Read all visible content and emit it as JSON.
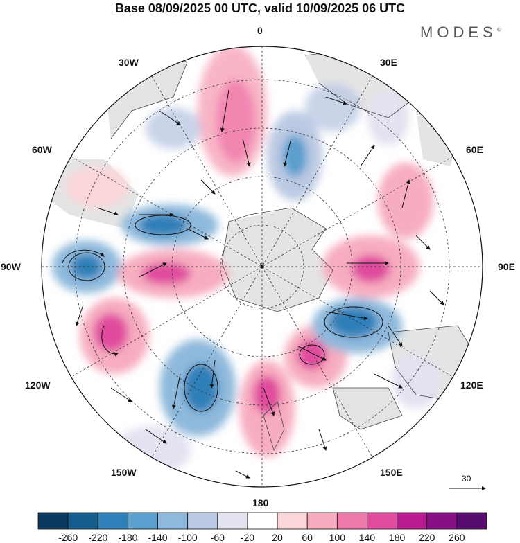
{
  "title": "Base 08/09/2025 00 UTC, valid 10/09/2025 06 UTC",
  "brand": "MODES",
  "brand_mark": "©",
  "longitude_labels": {
    "top": "0",
    "e30": "30E",
    "e60": "60E",
    "e90": "90E",
    "e120": "120E",
    "e150": "150E",
    "bottom": "180",
    "w150": "150W",
    "w120": "120W",
    "w90": "90W",
    "w60": "60W",
    "w30": "30W"
  },
  "reference_vector": "30",
  "colorbar": {
    "labels": [
      "-260",
      "-220",
      "-180",
      "-140",
      "-100",
      "-60",
      "-20",
      "20",
      "60",
      "100",
      "140",
      "180",
      "220",
      "260"
    ],
    "colors": [
      "#0b3a5e",
      "#135c8c",
      "#2f7fb8",
      "#5a9fcd",
      "#8fb9dc",
      "#bcc9e3",
      "#e3e2f0",
      "#ffffff",
      "#fbd6d8",
      "#f7adc0",
      "#ef7bab",
      "#e04c9e",
      "#b81b8f",
      "#871086",
      "#570c6f"
    ]
  },
  "colors": {
    "land": "#e4e4e4",
    "grid": "#333333",
    "coast": "#444444"
  }
}
